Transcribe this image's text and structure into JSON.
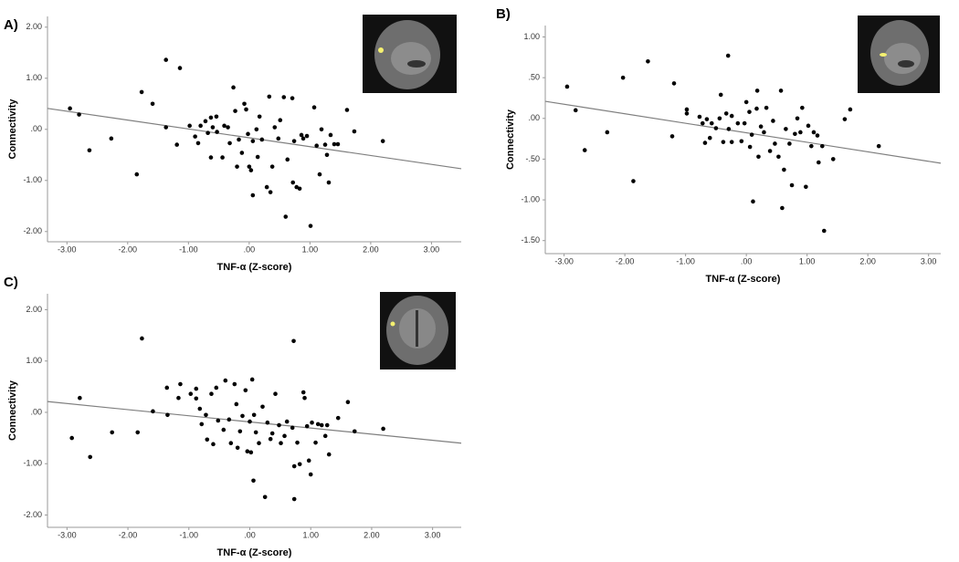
{
  "chart_data": [
    {
      "type": "scatter",
      "label": "A)",
      "x_label": "TNF-α (Z-score)",
      "y_label": "Connectivity",
      "color": "#000000",
      "x": [
        -2.95,
        -2.8,
        -2.63,
        -2.27,
        -1.85,
        -1.77,
        -1.59,
        -1.37,
        -1.14,
        -1.37,
        -1.19,
        -0.98,
        -0.89,
        -0.84,
        -0.8,
        -0.72,
        -0.68,
        -0.63,
        -0.6,
        -0.54,
        -0.63,
        -0.53,
        -0.44,
        -0.41,
        -0.35,
        -0.32,
        -0.26,
        -0.23,
        -0.2,
        -0.17,
        -0.12,
        -0.08,
        -0.05,
        -0.02,
        0,
        0.03,
        0.06,
        0.06,
        0.12,
        0.14,
        0.17,
        0.21,
        0.29,
        0.33,
        0.35,
        0.38,
        0.42,
        0.48,
        0.51,
        0.57,
        0.6,
        0.63,
        0.71,
        0.72,
        0.74,
        0.78,
        0.83,
        0.86,
        0.89,
        0.95,
        1.01,
        1.07,
        1.11,
        1.16,
        1.19,
        1.25,
        1.28,
        1.31,
        1.34,
        1.4,
        1.46,
        1.61,
        1.73,
        2.2
      ],
      "values": [
        0.41,
        0.29,
        -0.41,
        -0.18,
        -0.88,
        0.73,
        0.5,
        1.36,
        1.2,
        0.04,
        -0.3,
        0.07,
        -0.14,
        -0.27,
        0.07,
        0.16,
        -0.07,
        0.23,
        0.04,
        0.25,
        -0.55,
        -0.05,
        -0.55,
        0.07,
        0.04,
        -0.27,
        0.82,
        0.36,
        -0.73,
        -0.2,
        -0.46,
        0.5,
        0.39,
        -0.09,
        -0.73,
        -0.8,
        -1.29,
        -0.23,
        0,
        -0.54,
        0.25,
        -0.2,
        -1.13,
        0.64,
        -1.23,
        -0.73,
        0.04,
        -0.18,
        0.18,
        0.63,
        -1.71,
        -0.59,
        0.61,
        -1.04,
        -0.23,
        -1.13,
        -1.16,
        -0.11,
        -0.18,
        -0.13,
        -1.89,
        0.43,
        -0.32,
        -0.88,
        0,
        -0.3,
        -0.5,
        -1.04,
        -0.11,
        -0.29,
        -0.29,
        0.38,
        -0.04,
        -0.23
      ],
      "trendline": {
        "color": "#7f7f7f",
        "x": [
          -3.32,
          3.49
        ],
        "values": [
          0.41,
          -0.77
        ]
      },
      "xlim": [
        -3.32,
        3.49
      ],
      "ylim": [
        -2.2,
        2.21
      ],
      "xticks": [
        {
          "value": -3,
          "label": "-3.00"
        },
        {
          "value": -2,
          "label": "-2.00"
        },
        {
          "value": -1,
          "label": "-1.00"
        },
        {
          "value": 0,
          "label": ".00"
        },
        {
          "value": 1,
          "label": "1.00"
        },
        {
          "value": 2,
          "label": "2.00"
        },
        {
          "value": 3,
          "label": "3.00"
        }
      ],
      "yticks": [
        {
          "value": -2,
          "label": "-2.00"
        },
        {
          "value": -1,
          "label": "-1.00"
        },
        {
          "value": 0,
          "label": ".00"
        },
        {
          "value": 1,
          "label": "1.00"
        },
        {
          "value": 2,
          "label": "2.00"
        }
      ]
    },
    {
      "type": "scatter",
      "label": "B)",
      "x_label": "TNF-α (Z-score)",
      "y_label": "Connectivity",
      "color": "#000000",
      "x": [
        -2.95,
        -2.81,
        -2.66,
        -2.29,
        -2.03,
        -1.86,
        -1.62,
        -1.22,
        -1.19,
        -0.98,
        -0.98,
        -0.77,
        -0.72,
        -0.68,
        -0.65,
        -0.6,
        -0.57,
        -0.5,
        -0.44,
        -0.42,
        -0.38,
        -0.33,
        -0.29,
        -0.24,
        -0.24,
        -0.3,
        -0.14,
        -0.08,
        -0.03,
        0,
        0.05,
        0.06,
        0.09,
        0.11,
        0.17,
        0.18,
        0.2,
        0.24,
        0.29,
        0.33,
        0.39,
        0.44,
        0.47,
        0.53,
        0.57,
        0.59,
        0.62,
        0.65,
        0.71,
        0.75,
        0.8,
        0.84,
        0.89,
        0.92,
        0.98,
        1.02,
        1.07,
        1.11,
        1.17,
        1.19,
        1.25,
        1.28,
        1.43,
        1.62,
        1.71,
        2.18
      ],
      "values": [
        0.39,
        0.1,
        -0.39,
        -0.17,
        0.5,
        -0.77,
        0.7,
        -0.22,
        0.43,
        0.11,
        0.06,
        0.02,
        -0.06,
        -0.3,
        -0.01,
        -0.24,
        -0.06,
        -0.12,
        0,
        0.29,
        -0.29,
        0.06,
        -0.13,
        -0.29,
        0.03,
        0.77,
        -0.06,
        -0.28,
        -0.06,
        0.2,
        0.08,
        -0.35,
        -0.2,
        -1.02,
        0.12,
        0.34,
        -0.47,
        -0.1,
        -0.17,
        0.13,
        -0.4,
        -0.03,
        -0.31,
        -0.47,
        0.34,
        -1.1,
        -0.63,
        -0.13,
        -0.31,
        -0.82,
        -0.19,
        0,
        -0.17,
        0.13,
        -0.84,
        -0.09,
        -0.34,
        -0.17,
        -0.21,
        -0.54,
        -0.34,
        -1.38,
        -0.5,
        -0.01,
        0.11,
        -0.34
      ],
      "trendline": {
        "color": "#7f7f7f",
        "x": [
          -3.31,
          3.2
        ],
        "values": [
          0.21,
          -0.55
        ]
      },
      "xlim": [
        -3.31,
        3.2
      ],
      "ylim": [
        -1.66,
        1.14
      ],
      "xticks": [
        {
          "value": -3,
          "label": "-3.00"
        },
        {
          "value": -2,
          "label": "-2.00"
        },
        {
          "value": -1,
          "label": "-1.00"
        },
        {
          "value": 0,
          "label": ".00"
        },
        {
          "value": 1,
          "label": "1.00"
        },
        {
          "value": 2,
          "label": "2.00"
        },
        {
          "value": 3,
          "label": "3.00"
        }
      ],
      "yticks": [
        {
          "value": -1.5,
          "label": "-1.50"
        },
        {
          "value": -1,
          "label": "-1.00"
        },
        {
          "value": -0.5,
          "label": "-.50"
        },
        {
          "value": 0,
          "label": ".00"
        },
        {
          "value": 0.5,
          "label": ".50"
        },
        {
          "value": 1,
          "label": "1.00"
        }
      ]
    },
    {
      "type": "scatter",
      "label": "C)",
      "x_label": "TNF-α (Z-score)",
      "y_label": "Connectivity",
      "color": "#000000",
      "x": [
        -2.92,
        -2.79,
        -2.62,
        -2.26,
        -1.84,
        -1.77,
        -1.59,
        -1.36,
        -1.35,
        -1.14,
        -1.17,
        -0.97,
        -0.88,
        -0.88,
        -0.82,
        -0.79,
        -0.72,
        -0.7,
        -0.63,
        -0.6,
        -0.55,
        -0.52,
        -0.43,
        -0.4,
        -0.34,
        -0.31,
        -0.25,
        -0.22,
        -0.2,
        -0.16,
        -0.12,
        -0.07,
        -0.04,
        0,
        0.02,
        0.04,
        0.06,
        0.07,
        0.1,
        0.15,
        0.21,
        0.25,
        0.29,
        0.34,
        0.37,
        0.42,
        0.48,
        0.51,
        0.57,
        0.61,
        0.7,
        0.72,
        0.73,
        0.73,
        0.78,
        0.82,
        0.88,
        0.9,
        0.94,
        0.97,
        1.0,
        1.02,
        1.08,
        1.12,
        1.18,
        1.24,
        1.27,
        1.3,
        1.45,
        1.61,
        1.72,
        2.19
      ],
      "values": [
        -0.5,
        0.28,
        -0.87,
        -0.39,
        -0.39,
        1.44,
        0.02,
        0.48,
        -0.05,
        0.55,
        0.28,
        0.36,
        0.46,
        0.27,
        0.07,
        -0.23,
        -0.05,
        -0.53,
        0.36,
        -0.62,
        0.48,
        -0.16,
        -0.34,
        0.62,
        -0.14,
        -0.6,
        0.55,
        0.16,
        -0.69,
        -0.37,
        -0.07,
        0.43,
        -0.76,
        -0.18,
        -0.78,
        0.64,
        -1.33,
        -0.05,
        -0.39,
        -0.6,
        0.11,
        -1.65,
        -0.2,
        -0.52,
        -0.41,
        0.36,
        -0.25,
        -0.6,
        -0.46,
        -0.18,
        -0.3,
        1.39,
        -1.69,
        -1.05,
        -0.59,
        -1.01,
        0.39,
        0.28,
        -0.27,
        -0.94,
        -1.21,
        -0.2,
        -0.59,
        -0.23,
        -0.25,
        -0.46,
        -0.25,
        -0.82,
        -0.11,
        0.2,
        -0.37,
        -0.32
      ],
      "trendline": {
        "color": "#7f7f7f",
        "x": [
          -3.32,
          3.47
        ],
        "values": [
          0.21,
          -0.6
        ]
      },
      "xlim": [
        -3.32,
        3.47
      ],
      "ylim": [
        -2.24,
        2.31
      ],
      "xticks": [
        {
          "value": -3,
          "label": "-3.00"
        },
        {
          "value": -2,
          "label": "-2.00"
        },
        {
          "value": -1,
          "label": "-1.00"
        },
        {
          "value": 0,
          "label": ".00"
        },
        {
          "value": 1,
          "label": "1.00"
        },
        {
          "value": 2,
          "label": "2.00"
        },
        {
          "value": 3,
          "label": "3.00"
        }
      ],
      "yticks": [
        {
          "value": -2,
          "label": "-2.00"
        },
        {
          "value": -1,
          "label": "-1.00"
        },
        {
          "value": 0,
          "label": ".00"
        },
        {
          "value": 1,
          "label": "1.00"
        },
        {
          "value": 2,
          "label": "2.00"
        }
      ]
    }
  ]
}
